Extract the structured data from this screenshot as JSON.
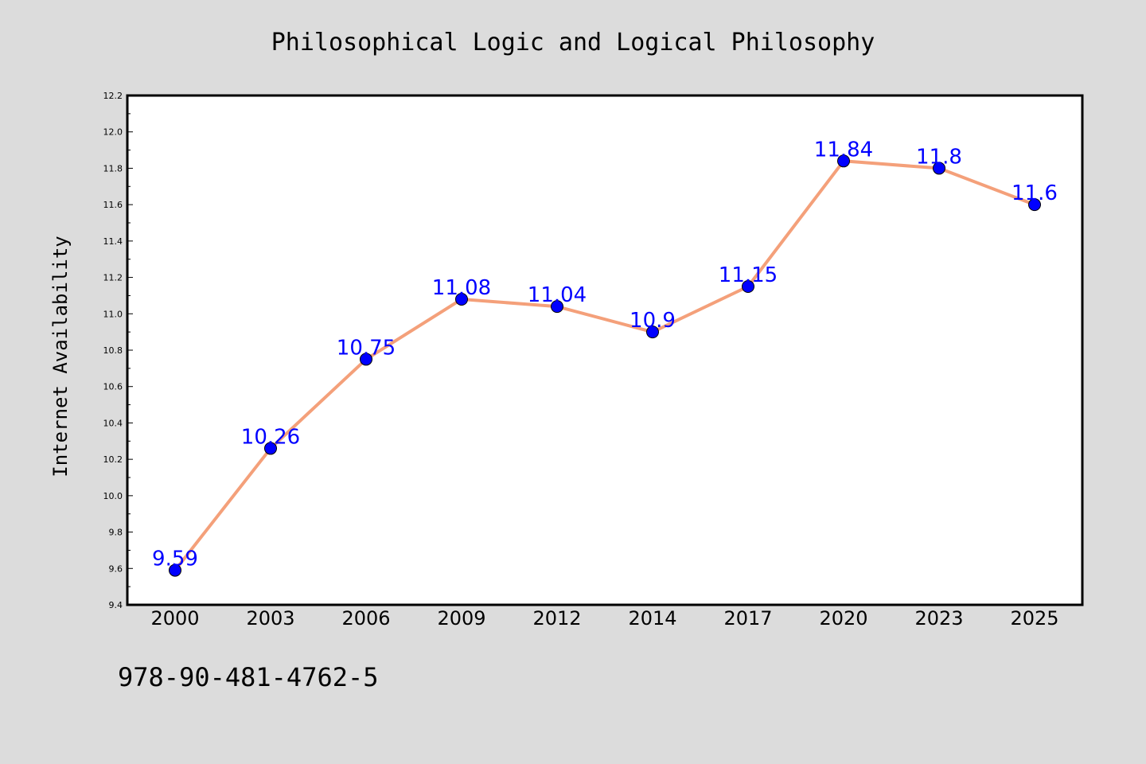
{
  "chart_data": {
    "type": "line",
    "title": "Philosophical Logic and Logical Philosophy",
    "xlabel": "",
    "ylabel": "Internet Availability",
    "categories": [
      "2000",
      "2003",
      "2006",
      "2009",
      "2012",
      "2014",
      "2017",
      "2020",
      "2023",
      "2025"
    ],
    "series": [
      {
        "values": [
          9.59,
          10.26,
          10.75,
          11.08,
          11.04,
          10.9,
          11.15,
          11.84,
          11.8,
          11.6
        ]
      }
    ],
    "data_labels": [
      "9.59",
      "10.26",
      "10.75",
      "11.08",
      "11.04",
      "10.9",
      "11.15",
      "11.84",
      "11.8",
      "11.6"
    ],
    "ylim": [
      9.4,
      12.2
    ],
    "yticks": [
      "9.4",
      "9.6",
      "9.8",
      "10.0",
      "10.2",
      "10.4",
      "10.6",
      "10.8",
      "11.0",
      "11.2",
      "11.4",
      "11.6",
      "11.8",
      "12.0",
      "12.2"
    ],
    "grid": false,
    "legend": "none"
  },
  "footer": {
    "isbn": "978-90-481-4762-5"
  },
  "colors": {
    "background": "#dcdcdc",
    "plot_area": "#ffffff",
    "line": "#f4a07a",
    "marker": "#0000ff",
    "data_label": "#0000ff"
  }
}
